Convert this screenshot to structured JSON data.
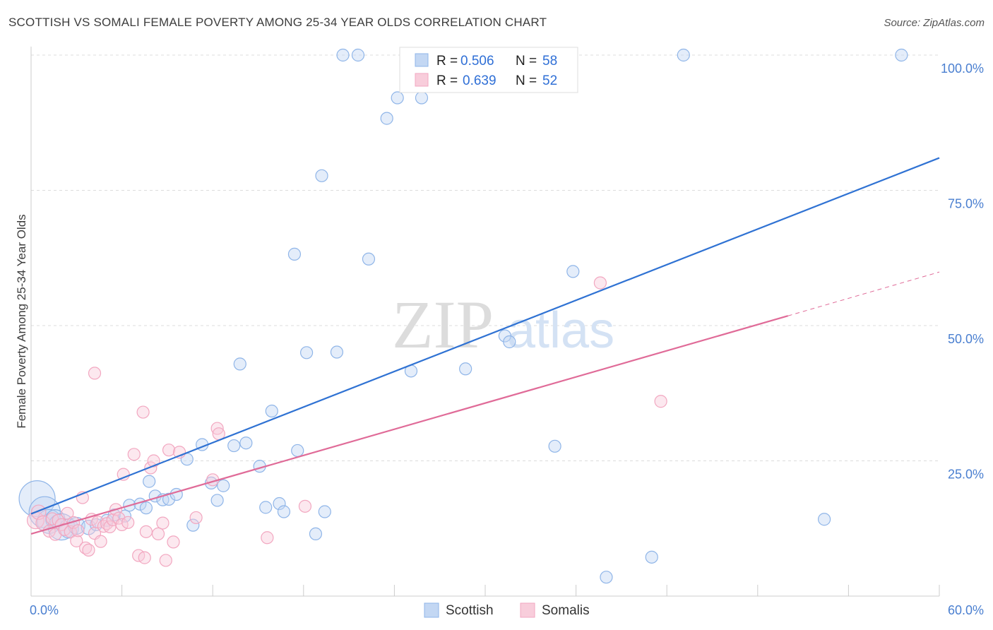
{
  "header": {
    "title": "SCOTTISH VS SOMALI FEMALE POVERTY AMONG 25-34 YEAR OLDS CORRELATION CHART",
    "source": "Source: ZipAtlas.com"
  },
  "watermark": {
    "zip": "ZIP",
    "atlas": "atlas"
  },
  "legend_top": [
    {
      "r_label": "R =",
      "r_value": "0.506",
      "n_label": "N =",
      "n_value": "58"
    },
    {
      "r_label": "R =",
      "r_value": "0.639",
      "n_label": "N =",
      "n_value": "52"
    }
  ],
  "legend_bottom": [
    {
      "label": "Scottish"
    },
    {
      "label": "Somalis"
    }
  ],
  "chart_data": {
    "type": "scatter",
    "title": "SCOTTISH VS SOMALI FEMALE POVERTY AMONG 25-34 YEAR OLDS CORRELATION CHART",
    "ylabel": "Female Poverty Among 25-34 Year Olds",
    "xlabel": "",
    "xlim": [
      0,
      60
    ],
    "ylim": [
      0,
      102
    ],
    "x_tick_labels": [
      {
        "value": 0,
        "label": "0.0%"
      },
      {
        "value": 60,
        "label": "60.0%"
      }
    ],
    "y_tick_labels": [
      {
        "value": 25,
        "label": "25.0%"
      },
      {
        "value": 50,
        "label": "50.0%"
      },
      {
        "value": 75,
        "label": "75.0%"
      },
      {
        "value": 100,
        "label": "100.0%"
      }
    ],
    "grid": "horizontal dashed",
    "legend_position": "top-center",
    "colors": {
      "scottish": "#8fb5e8",
      "scottish_line": "#2f72d3",
      "somalis": "#f2a7c0",
      "somalis_line": "#e06b98"
    },
    "series": [
      {
        "name": "Scottish",
        "points": [
          [
            0.4,
            18.0,
            3
          ],
          [
            0.9,
            15.5,
            2.6
          ],
          [
            1.2,
            13.8,
            2
          ],
          [
            1.6,
            14.2,
            1.6
          ],
          [
            2.0,
            12.8,
            2.2
          ],
          [
            2.5,
            12.5,
            1.6
          ],
          [
            3.0,
            13.0,
            1.4
          ],
          [
            3.8,
            12.7,
            1.2
          ],
          [
            4.3,
            13.2,
            1
          ],
          [
            5.0,
            14.0,
            1
          ],
          [
            5.5,
            15.0,
            1
          ],
          [
            6.2,
            14.8,
            1
          ],
          [
            6.5,
            16.8,
            1
          ],
          [
            7.2,
            17.0,
            1
          ],
          [
            7.6,
            16.3,
            1
          ],
          [
            7.8,
            21.2,
            1
          ],
          [
            8.2,
            18.5,
            1
          ],
          [
            8.7,
            17.8,
            1
          ],
          [
            9.1,
            17.9,
            1
          ],
          [
            9.6,
            18.8,
            1
          ],
          [
            10.3,
            25.3,
            1
          ],
          [
            10.7,
            13.1,
            1
          ],
          [
            11.3,
            28.0,
            1
          ],
          [
            11.9,
            20.9,
            1
          ],
          [
            12.3,
            17.7,
            1
          ],
          [
            12.7,
            20.4,
            1
          ],
          [
            13.4,
            27.8,
            1
          ],
          [
            13.8,
            42.9,
            1
          ],
          [
            14.2,
            28.3,
            1
          ],
          [
            15.1,
            24.0,
            1
          ],
          [
            15.5,
            16.4,
            1
          ],
          [
            15.9,
            34.2,
            1
          ],
          [
            16.4,
            17.1,
            1
          ],
          [
            16.7,
            15.6,
            1
          ],
          [
            17.4,
            63.2,
            1
          ],
          [
            17.6,
            26.9,
            1
          ],
          [
            18.2,
            45.0,
            1
          ],
          [
            18.8,
            11.5,
            1
          ],
          [
            19.2,
            77.7,
            1
          ],
          [
            19.4,
            15.6,
            1
          ],
          [
            20.2,
            45.1,
            1
          ],
          [
            20.6,
            100.0,
            1
          ],
          [
            21.6,
            100.0,
            1
          ],
          [
            22.3,
            62.3,
            1
          ],
          [
            23.5,
            88.3,
            1
          ],
          [
            24.2,
            92.1,
            1
          ],
          [
            25.1,
            41.6,
            1
          ],
          [
            25.8,
            92.1,
            1
          ],
          [
            28.7,
            42.0,
            1
          ],
          [
            31.3,
            48.1,
            1
          ],
          [
            31.6,
            47.0,
            1
          ],
          [
            34.6,
            27.7,
            1
          ],
          [
            35.8,
            60.0,
            1
          ],
          [
            38.0,
            3.5,
            1
          ],
          [
            41.0,
            7.2,
            1
          ],
          [
            43.1,
            100.0,
            1
          ],
          [
            52.4,
            14.2,
            1
          ],
          [
            57.5,
            100.0,
            1
          ]
        ],
        "trend": {
          "x": [
            0,
            60
          ],
          "y": [
            15.2,
            81.0
          ]
        }
      },
      {
        "name": "Somalis",
        "points": [
          [
            0.3,
            14.0,
            1.4
          ],
          [
            0.5,
            15.5,
            1.2
          ],
          [
            0.8,
            13.5,
            1.2
          ],
          [
            1.2,
            12.0,
            1
          ],
          [
            1.4,
            14.3,
            1
          ],
          [
            1.6,
            11.4,
            1
          ],
          [
            1.8,
            14.0,
            1
          ],
          [
            2.0,
            13.2,
            1
          ],
          [
            2.2,
            12.3,
            1
          ],
          [
            2.4,
            15.3,
            1
          ],
          [
            2.6,
            11.9,
            1
          ],
          [
            2.8,
            13.6,
            1
          ],
          [
            3.0,
            10.2,
            1
          ],
          [
            3.1,
            12.1,
            1
          ],
          [
            3.4,
            18.2,
            1
          ],
          [
            3.6,
            8.9,
            1
          ],
          [
            3.8,
            8.5,
            1
          ],
          [
            4.0,
            14.2,
            1
          ],
          [
            4.2,
            11.6,
            1
          ],
          [
            4.4,
            13.7,
            1
          ],
          [
            4.6,
            10.1,
            1
          ],
          [
            4.8,
            12.9,
            1
          ],
          [
            5.0,
            13.4,
            1
          ],
          [
            5.2,
            12.8,
            1
          ],
          [
            5.4,
            14.1,
            1
          ],
          [
            5.6,
            16.0,
            1
          ],
          [
            5.8,
            14.4,
            1
          ],
          [
            6.0,
            13.2,
            1
          ],
          [
            6.1,
            22.5,
            1
          ],
          [
            6.4,
            13.6,
            1
          ],
          [
            4.2,
            41.2,
            1
          ],
          [
            6.8,
            26.2,
            1
          ],
          [
            7.1,
            7.5,
            1
          ],
          [
            7.4,
            34.0,
            1
          ],
          [
            7.5,
            7.1,
            1
          ],
          [
            7.6,
            11.9,
            1
          ],
          [
            7.9,
            23.7,
            1
          ],
          [
            8.1,
            25.0,
            1
          ],
          [
            8.4,
            11.5,
            1
          ],
          [
            8.7,
            13.5,
            1
          ],
          [
            8.9,
            6.6,
            1
          ],
          [
            9.1,
            27.0,
            1
          ],
          [
            9.4,
            10.0,
            1
          ],
          [
            9.8,
            26.6,
            1
          ],
          [
            10.9,
            14.5,
            1
          ],
          [
            12.0,
            21.5,
            1
          ],
          [
            12.3,
            31.0,
            1
          ],
          [
            12.4,
            30.0,
            1
          ],
          [
            15.6,
            10.8,
            1
          ],
          [
            18.1,
            16.6,
            1
          ],
          [
            37.6,
            57.9,
            1
          ],
          [
            41.6,
            36.0,
            1
          ]
        ],
        "trend": {
          "x": [
            0,
            50
          ],
          "y": [
            11.5,
            51.8
          ]
        },
        "trend_extension": {
          "x": [
            50,
            60
          ],
          "y": [
            51.8,
            59.9
          ]
        }
      }
    ]
  }
}
